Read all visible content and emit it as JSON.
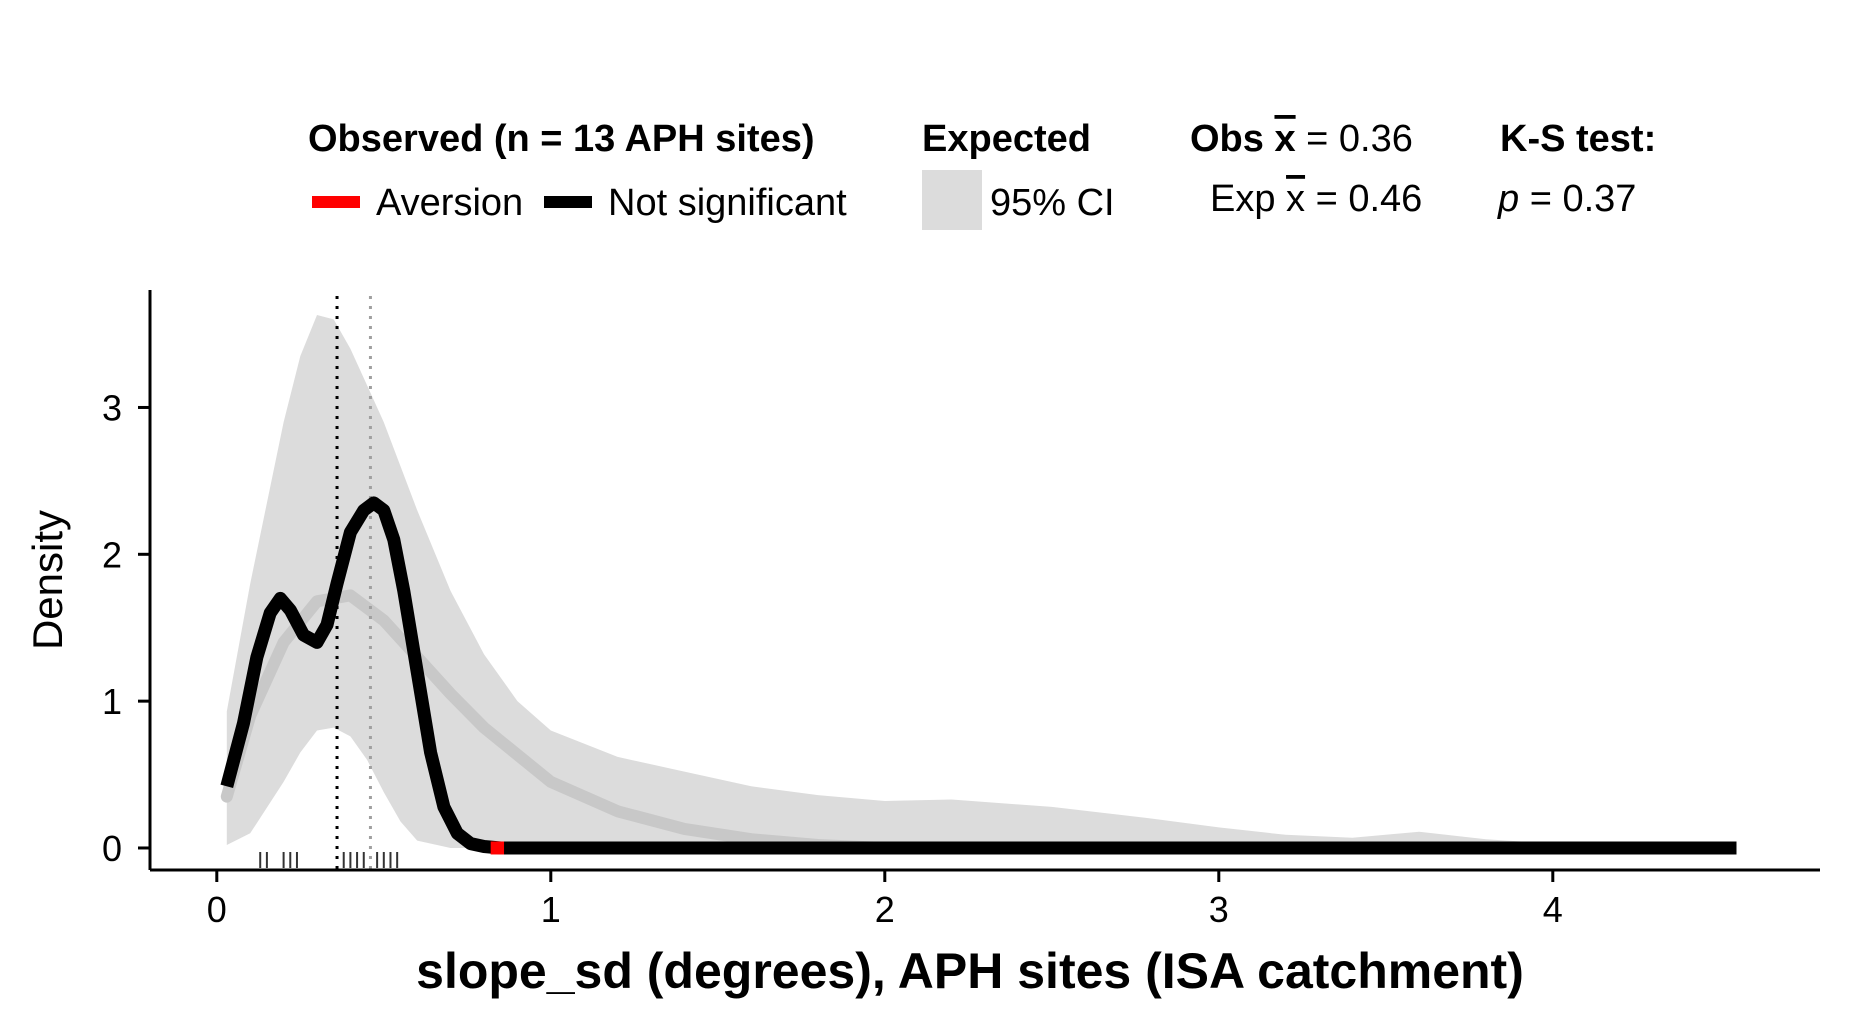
{
  "legend": {
    "observed_title": "Observed (n = 13 APH sites)",
    "aversion_label": "Aversion",
    "not_significant_label": "Not significant",
    "expected_title": "Expected",
    "ci_label": "95% CI",
    "obs_mean_prefix": "Obs ",
    "obs_mean_symbol": "x",
    "obs_mean_value": " = 0.36",
    "exp_mean_prefix": "Exp ",
    "exp_mean_symbol": "x",
    "exp_mean_value": " = 0.46",
    "ks_title": "K-S test:",
    "ks_p_symbol": "p",
    "ks_p_value": " = 0.37"
  },
  "colors": {
    "aversion": "#ff0000",
    "observed_line": "#000000",
    "ci_band": "#dcdcdc",
    "expected_line": "#c8c8c8",
    "obs_mean_line": "#000000",
    "exp_mean_line": "#a0a0a0"
  },
  "chart_data": {
    "type": "line",
    "xlabel": "slope_sd (degrees), APH sites (ISA catchment)",
    "ylabel": "Density",
    "xlim": [
      -0.2,
      4.8
    ],
    "ylim": [
      -0.15,
      3.8
    ],
    "x_ticks": [
      0,
      1,
      2,
      3,
      4
    ],
    "y_ticks": [
      0,
      1,
      2,
      3
    ],
    "grid": false,
    "legend_position": "top",
    "observed_density": {
      "x": [
        0.03,
        0.08,
        0.12,
        0.16,
        0.19,
        0.22,
        0.26,
        0.3,
        0.33,
        0.36,
        0.4,
        0.44,
        0.47,
        0.5,
        0.53,
        0.56,
        0.6,
        0.64,
        0.68,
        0.72,
        0.76,
        0.8,
        0.85,
        1.0,
        2.0,
        3.0,
        4.0,
        4.55
      ],
      "y": [
        0.42,
        0.85,
        1.3,
        1.6,
        1.7,
        1.62,
        1.45,
        1.4,
        1.52,
        1.8,
        2.15,
        2.3,
        2.35,
        2.3,
        2.1,
        1.75,
        1.2,
        0.65,
        0.28,
        0.1,
        0.03,
        0.01,
        0.0,
        0.0,
        0.0,
        0.0,
        0.0,
        0.0
      ]
    },
    "aversion_segment": {
      "x": [
        0.82,
        0.86
      ],
      "y": [
        0.0,
        0.0
      ]
    },
    "expected_mean_density": {
      "x": [
        0.03,
        0.1,
        0.2,
        0.3,
        0.4,
        0.5,
        0.6,
        0.7,
        0.8,
        1.0,
        1.2,
        1.4,
        1.6,
        1.8,
        2.0
      ],
      "y": [
        0.35,
        0.9,
        1.4,
        1.68,
        1.72,
        1.55,
        1.3,
        1.05,
        0.82,
        0.45,
        0.25,
        0.13,
        0.06,
        0.02,
        0.0
      ]
    },
    "ci_band": {
      "x": [
        0.03,
        0.1,
        0.2,
        0.25,
        0.3,
        0.35,
        0.4,
        0.45,
        0.5,
        0.55,
        0.6,
        0.7,
        0.8,
        0.9,
        1.0,
        1.2,
        1.4,
        1.6,
        1.8,
        2.0,
        2.2,
        2.5,
        2.8,
        3.0,
        3.2,
        3.4,
        3.6,
        3.8,
        4.0,
        4.2,
        4.55
      ],
      "upper": [
        0.93,
        1.8,
        2.9,
        3.35,
        3.63,
        3.6,
        3.4,
        3.15,
        2.9,
        2.6,
        2.3,
        1.75,
        1.32,
        1.0,
        0.8,
        0.62,
        0.52,
        0.42,
        0.36,
        0.32,
        0.33,
        0.28,
        0.2,
        0.14,
        0.09,
        0.07,
        0.11,
        0.06,
        0.03,
        0.01,
        0.0
      ],
      "lower": [
        0.02,
        0.1,
        0.45,
        0.65,
        0.8,
        0.82,
        0.76,
        0.6,
        0.38,
        0.18,
        0.05,
        0.0,
        0.0,
        0.0,
        0.0,
        0.0,
        0.0,
        0.0,
        0.0,
        0.0,
        0.0,
        0.0,
        0.0,
        0.0,
        0.0,
        0.0,
        0.0,
        0.0,
        0.0,
        0.0,
        0.0
      ]
    },
    "obs_mean": 0.36,
    "exp_mean": 0.46,
    "rug": [
      0.13,
      0.15,
      0.2,
      0.22,
      0.24,
      0.38,
      0.4,
      0.42,
      0.44,
      0.48,
      0.5,
      0.52,
      0.54
    ]
  }
}
